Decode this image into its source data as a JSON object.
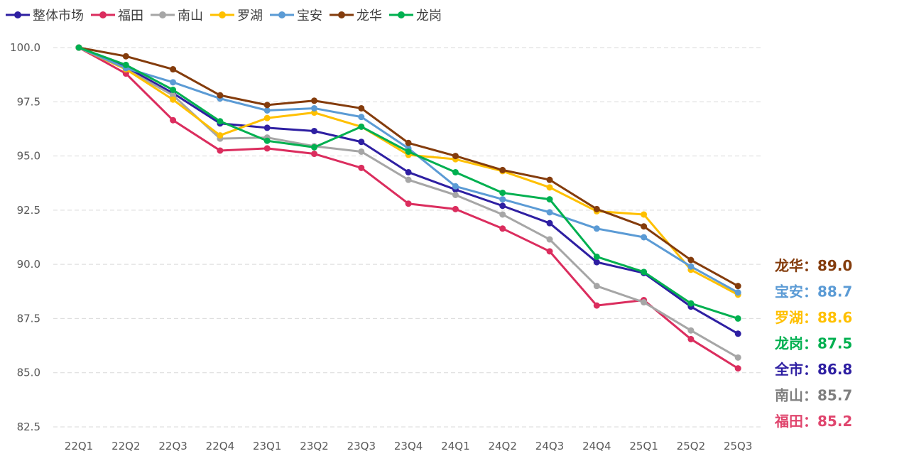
{
  "chart_data": {
    "type": "line",
    "title": "",
    "xlabel": "",
    "ylabel": "",
    "ylim": [
      82.5,
      100.0
    ],
    "yticks": [
      100.0,
      97.5,
      95.0,
      92.5,
      90.0,
      87.5,
      85.0,
      82.5
    ],
    "ytick_labels": [
      "100.0",
      "97.5",
      "95.0",
      "92.5",
      "90.0",
      "87.5",
      "85.0",
      "82.5"
    ],
    "grid": "horizontal-dashed",
    "legend_position": "top-left",
    "categories": [
      "22Q1",
      "22Q2",
      "22Q3",
      "22Q4",
      "23Q1",
      "23Q2",
      "23Q3",
      "23Q4",
      "24Q1",
      "24Q2",
      "24Q3",
      "24Q4",
      "25Q1",
      "25Q2",
      "25Q3"
    ],
    "series": [
      {
        "name": "整体市场",
        "color": "#2E1FA2",
        "values": [
          100.0,
          99.1,
          97.9,
          96.5,
          96.3,
          96.15,
          95.65,
          94.25,
          93.45,
          92.7,
          91.9,
          90.1,
          89.6,
          88.05,
          86.8
        ]
      },
      {
        "name": "福田",
        "color": "#DB2D5E",
        "values": [
          100.0,
          98.8,
          96.65,
          95.25,
          95.35,
          95.1,
          94.45,
          92.8,
          92.55,
          91.65,
          90.6,
          88.1,
          88.35,
          86.55,
          85.2
        ]
      },
      {
        "name": "南山",
        "color": "#A6A6A6",
        "values": [
          100.0,
          99.0,
          97.8,
          95.8,
          95.85,
          95.45,
          95.2,
          93.9,
          93.2,
          92.3,
          91.15,
          89.0,
          88.25,
          86.95,
          85.7
        ]
      },
      {
        "name": "罗湖",
        "color": "#FFC000",
        "values": [
          100.0,
          99.0,
          97.6,
          95.95,
          96.75,
          97.0,
          96.35,
          95.05,
          94.85,
          94.3,
          93.55,
          92.45,
          92.3,
          89.75,
          88.6
        ]
      },
      {
        "name": "宝安",
        "color": "#5B9BD5",
        "values": [
          100.0,
          99.05,
          98.4,
          97.65,
          97.1,
          97.2,
          96.8,
          95.35,
          93.6,
          93.0,
          92.4,
          91.65,
          91.25,
          89.9,
          88.7
        ]
      },
      {
        "name": "龙华",
        "color": "#843C0C",
        "values": [
          100.0,
          99.6,
          99.0,
          97.8,
          97.35,
          97.55,
          97.2,
          95.6,
          95.0,
          94.35,
          93.9,
          92.55,
          91.75,
          90.2,
          89.0
        ]
      },
      {
        "name": "龙岗",
        "color": "#00B050",
        "values": [
          100.0,
          99.2,
          98.05,
          96.6,
          95.7,
          95.4,
          96.35,
          95.2,
          94.25,
          93.3,
          93.0,
          90.35,
          89.65,
          88.2,
          87.5
        ]
      }
    ],
    "end_labels": [
      {
        "text": "龙华：89.0",
        "color": "#843C0C"
      },
      {
        "text": "宝安：88.7",
        "color": "#5B9BD5"
      },
      {
        "text": "罗湖：88.6",
        "color": "#FFC000"
      },
      {
        "text": "龙岗：87.5",
        "color": "#00B050"
      },
      {
        "text": "全市：86.8",
        "color": "#2E1FA2"
      },
      {
        "text": "南山：85.7",
        "color": "#7F7F7F"
      },
      {
        "text": "福田：85.2",
        "color": "#E0466E"
      }
    ]
  }
}
